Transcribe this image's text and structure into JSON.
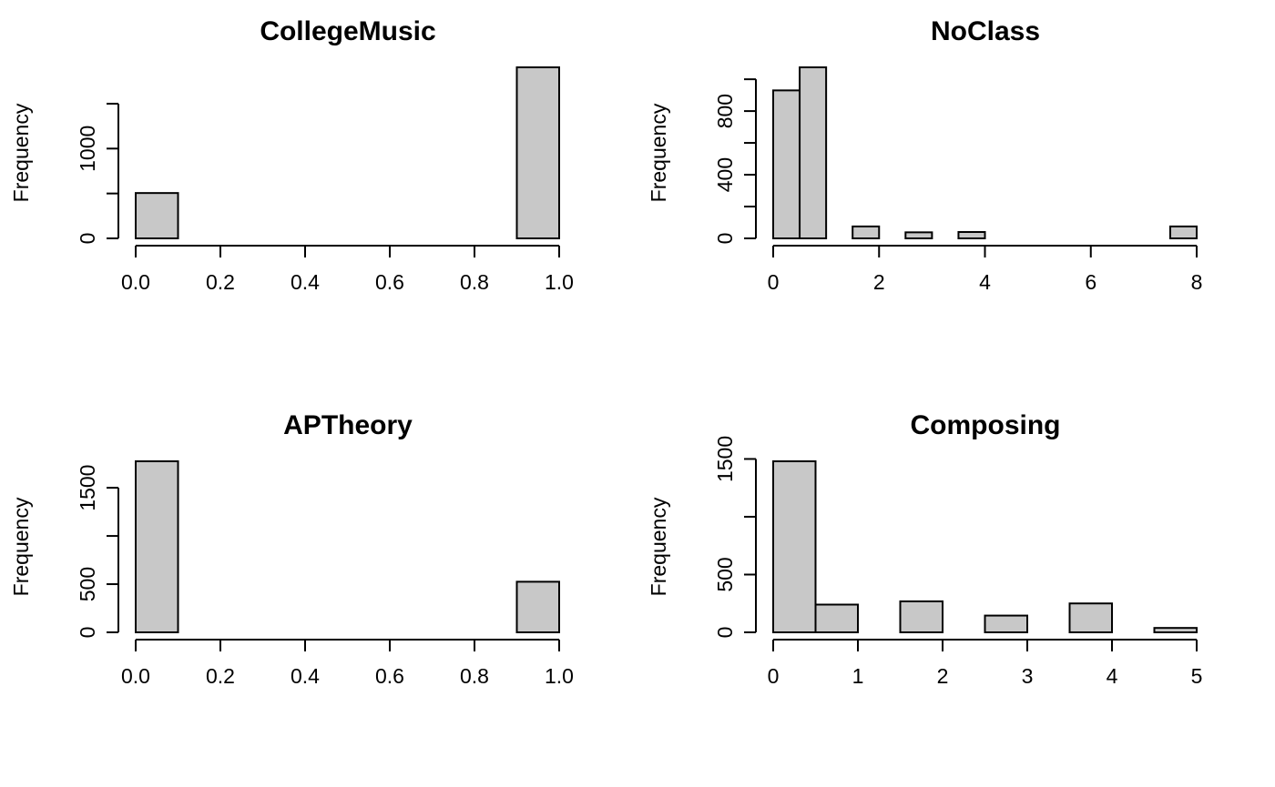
{
  "chart_data": [
    {
      "type": "bar",
      "title": "CollegeMusic",
      "xlabel": "",
      "ylabel": "Frequency",
      "bins": [
        [
          0.0,
          0.1
        ],
        [
          0.1,
          0.2
        ],
        [
          0.2,
          0.3
        ],
        [
          0.3,
          0.4
        ],
        [
          0.4,
          0.5
        ],
        [
          0.5,
          0.6
        ],
        [
          0.6,
          0.7
        ],
        [
          0.7,
          0.8
        ],
        [
          0.8,
          0.9
        ],
        [
          0.9,
          1.0
        ]
      ],
      "values": [
        505,
        0,
        0,
        0,
        0,
        0,
        0,
        0,
        0,
        1905
      ],
      "xlim": [
        0,
        1
      ],
      "ylim": [
        0,
        1500
      ],
      "x_ticks": [
        0.0,
        0.2,
        0.4,
        0.6,
        0.8,
        1.0
      ],
      "x_tick_labels": [
        "0.0",
        "0.2",
        "0.4",
        "0.6",
        "0.8",
        "1.0"
      ],
      "y_ticks": [
        0,
        500,
        1000,
        1500
      ],
      "y_tick_labels": [
        "0",
        "",
        "1000",
        ""
      ],
      "bar_color": "#c8c8c8",
      "grid": false
    },
    {
      "type": "bar",
      "title": "NoClass",
      "xlabel": "",
      "ylabel": "Frequency",
      "bins": [
        [
          0.0,
          0.5
        ],
        [
          0.5,
          1.0
        ],
        [
          1.0,
          1.5
        ],
        [
          1.5,
          2.0
        ],
        [
          2.0,
          2.5
        ],
        [
          2.5,
          3.0
        ],
        [
          3.0,
          3.5
        ],
        [
          3.5,
          4.0
        ],
        [
          4.0,
          4.5
        ],
        [
          4.5,
          5.0
        ],
        [
          5.0,
          5.5
        ],
        [
          5.5,
          6.0
        ],
        [
          6.0,
          6.5
        ],
        [
          6.5,
          7.0
        ],
        [
          7.0,
          7.5
        ],
        [
          7.5,
          8.0
        ]
      ],
      "values": [
        930,
        1075,
        0,
        75,
        0,
        38,
        0,
        40,
        0,
        0,
        0,
        0,
        0,
        0,
        0,
        75
      ],
      "xlim": [
        0,
        8
      ],
      "ylim": [
        0,
        1000
      ],
      "x_ticks": [
        0,
        2,
        4,
        6,
        8
      ],
      "x_tick_labels": [
        "0",
        "2",
        "4",
        "6",
        "8"
      ],
      "y_ticks": [
        0,
        200,
        400,
        600,
        800,
        1000
      ],
      "y_tick_labels": [
        "0",
        "",
        "400",
        "",
        "800",
        ""
      ],
      "bar_color": "#c8c8c8",
      "grid": false
    },
    {
      "type": "bar",
      "title": "APTheory",
      "xlabel": "",
      "ylabel": "Frequency",
      "bins": [
        [
          0.0,
          0.1
        ],
        [
          0.1,
          0.2
        ],
        [
          0.2,
          0.3
        ],
        [
          0.3,
          0.4
        ],
        [
          0.4,
          0.5
        ],
        [
          0.5,
          0.6
        ],
        [
          0.6,
          0.7
        ],
        [
          0.7,
          0.8
        ],
        [
          0.8,
          0.9
        ],
        [
          0.9,
          1.0
        ]
      ],
      "values": [
        1775,
        0,
        0,
        0,
        0,
        0,
        0,
        0,
        0,
        525
      ],
      "xlim": [
        0,
        1
      ],
      "ylim": [
        0,
        1500
      ],
      "x_ticks": [
        0.0,
        0.2,
        0.4,
        0.6,
        0.8,
        1.0
      ],
      "x_tick_labels": [
        "0.0",
        "0.2",
        "0.4",
        "0.6",
        "0.8",
        "1.0"
      ],
      "y_ticks": [
        0,
        500,
        1000,
        1500
      ],
      "y_tick_labels": [
        "0",
        "500",
        "",
        "1500"
      ],
      "bar_color": "#c8c8c8",
      "grid": false
    },
    {
      "type": "bar",
      "title": "Composing",
      "xlabel": "",
      "ylabel": "Frequency",
      "bins": [
        [
          0.0,
          0.5
        ],
        [
          0.5,
          1.0
        ],
        [
          1.0,
          1.5
        ],
        [
          1.5,
          2.0
        ],
        [
          2.0,
          2.5
        ],
        [
          2.5,
          3.0
        ],
        [
          3.0,
          3.5
        ],
        [
          3.5,
          4.0
        ],
        [
          4.0,
          4.5
        ],
        [
          4.5,
          5.0
        ]
      ],
      "values": [
        1480,
        240,
        0,
        268,
        0,
        145,
        0,
        250,
        0,
        38
      ],
      "xlim": [
        0,
        5
      ],
      "ylim": [
        0,
        1500
      ],
      "x_ticks": [
        0,
        1,
        2,
        3,
        4,
        5
      ],
      "x_tick_labels": [
        "0",
        "1",
        "2",
        "3",
        "4",
        "5"
      ],
      "y_ticks": [
        0,
        500,
        1000,
        1500
      ],
      "y_tick_labels": [
        "0",
        "500",
        "",
        "1500"
      ],
      "bar_color": "#c8c8c8",
      "grid": false
    }
  ]
}
